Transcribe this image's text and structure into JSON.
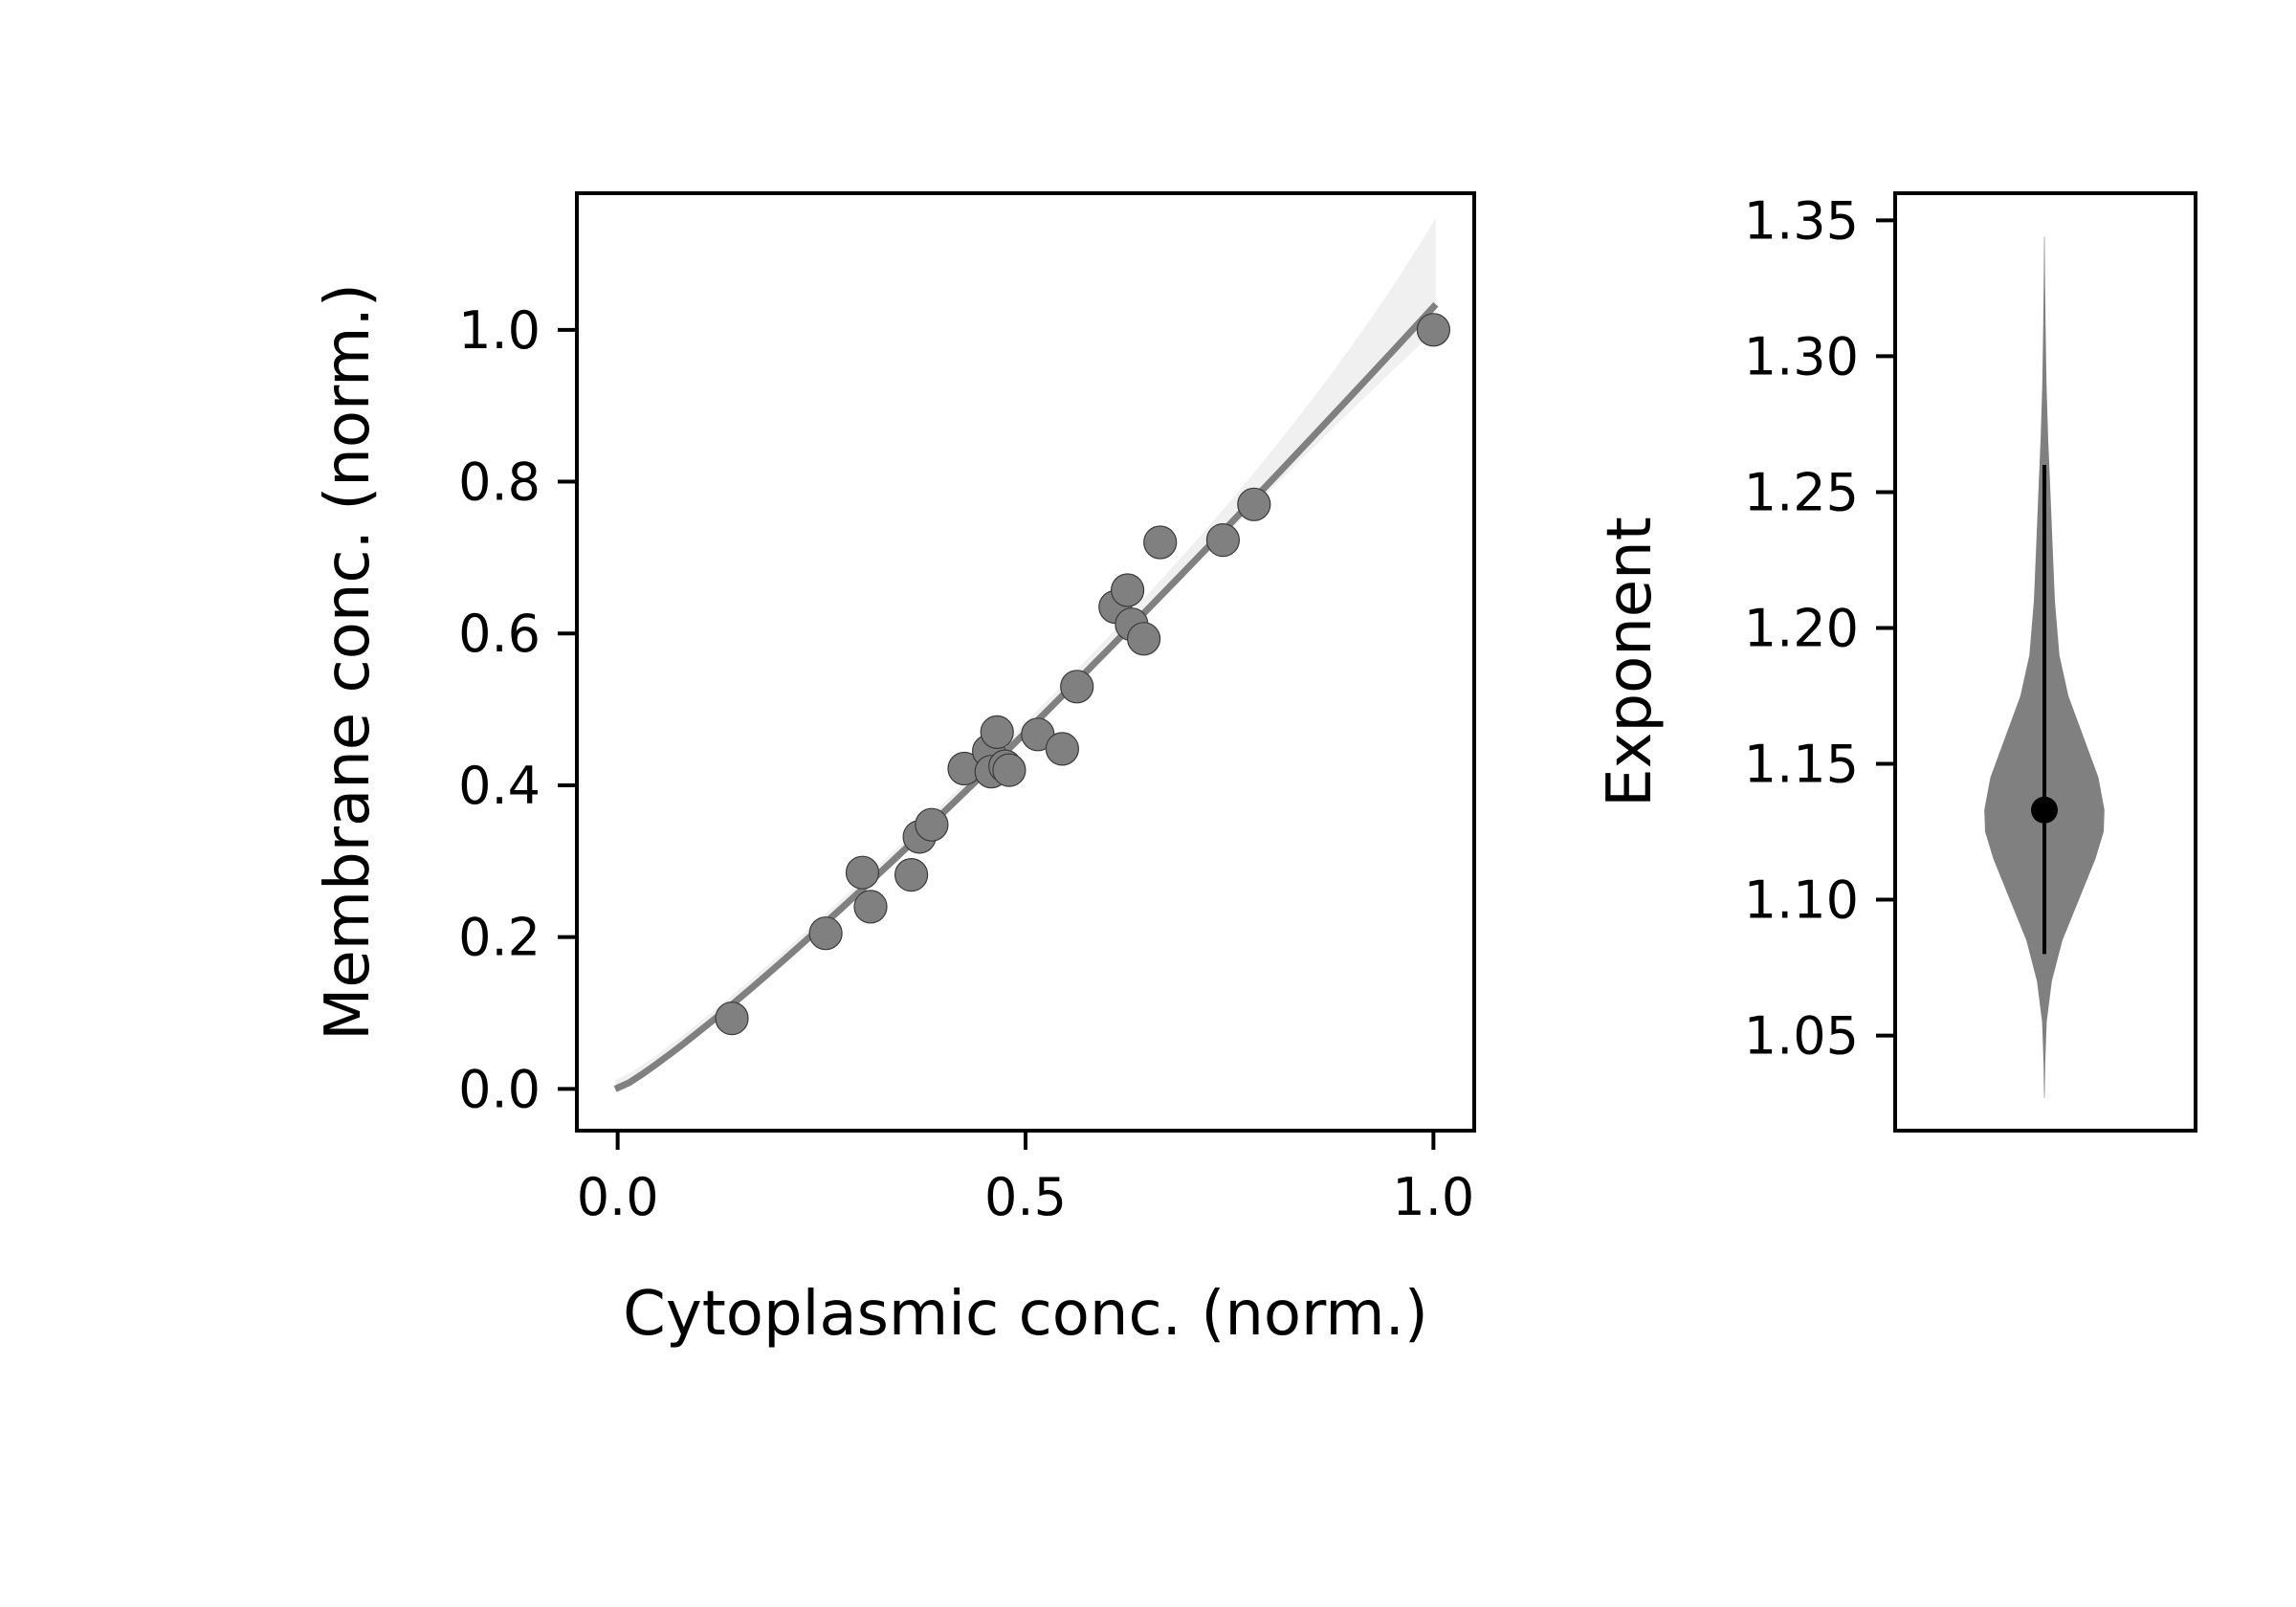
{
  "chart_data": [
    {
      "type": "scatter",
      "xlabel": "Cytoplasmic conc. (norm.)",
      "ylabel": "Membrane conc. (norm.)",
      "xlim": [
        -0.05,
        1.05
      ],
      "ylim": [
        -0.055,
        1.18
      ],
      "xticks": [
        "0.0",
        "0.5",
        "1.0"
      ],
      "yticks": [
        "0.0",
        "0.2",
        "0.4",
        "0.6",
        "0.8",
        "1.0"
      ],
      "grid": false,
      "points": {
        "x": [
          0.14,
          0.255,
          0.3,
          0.31,
          0.36,
          0.37,
          0.385,
          0.425,
          0.455,
          0.458,
          0.465,
          0.475,
          0.48,
          0.515,
          0.545,
          0.563,
          0.61,
          0.625,
          0.63,
          0.645,
          0.665,
          0.742,
          0.78,
          1.0
        ],
        "y": [
          0.093,
          0.205,
          0.285,
          0.24,
          0.282,
          0.332,
          0.348,
          0.422,
          0.445,
          0.418,
          0.47,
          0.425,
          0.42,
          0.467,
          0.448,
          0.53,
          0.635,
          0.657,
          0.612,
          0.593,
          0.72,
          0.723,
          0.77,
          1.0
        ],
        "color": "#808080"
      },
      "fit": {
        "model": "power law",
        "exponent": 1.133,
        "scale": 1.03,
        "color": "#808080",
        "band_color": "#f0f0f0"
      }
    },
    {
      "type": "violin",
      "ylabel": "Exponent",
      "ylim": [
        1.015,
        1.36
      ],
      "yticks": [
        "1.05",
        "1.10",
        "1.15",
        "1.20",
        "1.25",
        "1.30",
        "1.35"
      ],
      "grid": false,
      "median": 1.133,
      "interval": [
        1.08,
        1.26
      ],
      "range": [
        1.027,
        1.344
      ],
      "color": "#808080"
    }
  ]
}
